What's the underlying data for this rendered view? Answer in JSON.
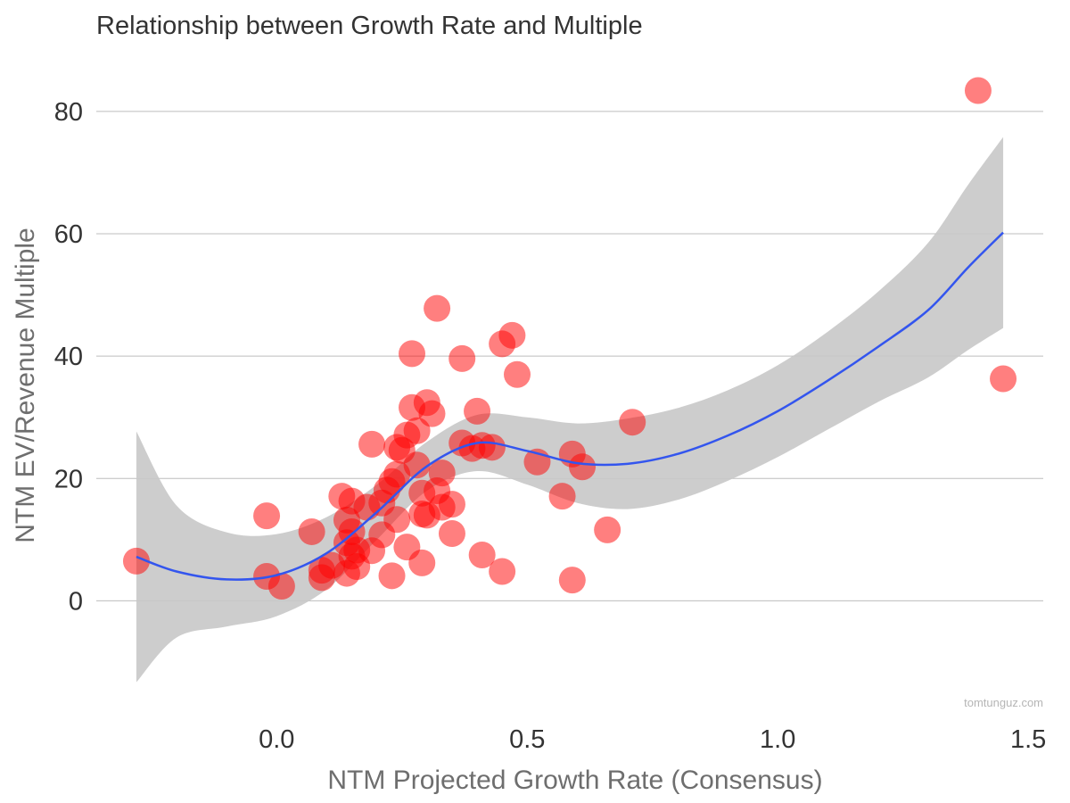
{
  "chart_data": {
    "type": "scatter",
    "title": "Relationship between Growth Rate and Multiple",
    "xlabel": "NTM Projected Growth Rate (Consensus)",
    "ylabel": "NTM EV/Revenue Multiple",
    "watermark": "tomtunguz.com",
    "x_ticks": [
      "0.0",
      "0.5",
      "1.0",
      "1.5"
    ],
    "y_ticks": [
      "0",
      "20",
      "40",
      "60",
      "80"
    ],
    "xlim": [
      -0.36,
      1.53
    ],
    "ylim": [
      -17,
      88
    ],
    "grid": "horizontal",
    "colors": {
      "points": "#ff0000",
      "smooth_line": "#3355ee",
      "confidence_band": "#c8c8c8"
    },
    "points": [
      {
        "x": -0.28,
        "y": 6.5
      },
      {
        "x": -0.02,
        "y": 13.9
      },
      {
        "x": -0.02,
        "y": 4.0
      },
      {
        "x": 0.01,
        "y": 2.4
      },
      {
        "x": 0.07,
        "y": 11.3
      },
      {
        "x": 0.09,
        "y": 3.8
      },
      {
        "x": 0.09,
        "y": 5.0
      },
      {
        "x": 0.11,
        "y": 5.8
      },
      {
        "x": 0.13,
        "y": 17.1
      },
      {
        "x": 0.14,
        "y": 13.2
      },
      {
        "x": 0.14,
        "y": 9.5
      },
      {
        "x": 0.14,
        "y": 4.5
      },
      {
        "x": 0.15,
        "y": 16.3
      },
      {
        "x": 0.15,
        "y": 11.3
      },
      {
        "x": 0.15,
        "y": 7.3
      },
      {
        "x": 0.16,
        "y": 5.6
      },
      {
        "x": 0.16,
        "y": 8.3
      },
      {
        "x": 0.18,
        "y": 15.3
      },
      {
        "x": 0.19,
        "y": 25.6
      },
      {
        "x": 0.19,
        "y": 8.2
      },
      {
        "x": 0.21,
        "y": 10.8
      },
      {
        "x": 0.21,
        "y": 16.0
      },
      {
        "x": 0.22,
        "y": 18.1
      },
      {
        "x": 0.23,
        "y": 19.5
      },
      {
        "x": 0.23,
        "y": 4.1
      },
      {
        "x": 0.24,
        "y": 25.1
      },
      {
        "x": 0.24,
        "y": 20.7
      },
      {
        "x": 0.24,
        "y": 13.3
      },
      {
        "x": 0.25,
        "y": 24.6
      },
      {
        "x": 0.26,
        "y": 27.1
      },
      {
        "x": 0.26,
        "y": 8.8
      },
      {
        "x": 0.27,
        "y": 40.4
      },
      {
        "x": 0.27,
        "y": 31.6
      },
      {
        "x": 0.28,
        "y": 27.8
      },
      {
        "x": 0.28,
        "y": 22.2
      },
      {
        "x": 0.29,
        "y": 17.6
      },
      {
        "x": 0.29,
        "y": 14.2
      },
      {
        "x": 0.29,
        "y": 6.2
      },
      {
        "x": 0.3,
        "y": 32.4
      },
      {
        "x": 0.3,
        "y": 14.0
      },
      {
        "x": 0.31,
        "y": 30.6
      },
      {
        "x": 0.32,
        "y": 47.8
      },
      {
        "x": 0.32,
        "y": 18.0
      },
      {
        "x": 0.33,
        "y": 20.9
      },
      {
        "x": 0.33,
        "y": 15.3
      },
      {
        "x": 0.35,
        "y": 15.8
      },
      {
        "x": 0.35,
        "y": 11.0
      },
      {
        "x": 0.37,
        "y": 39.6
      },
      {
        "x": 0.37,
        "y": 25.8
      },
      {
        "x": 0.39,
        "y": 24.9
      },
      {
        "x": 0.4,
        "y": 31.0
      },
      {
        "x": 0.41,
        "y": 25.4
      },
      {
        "x": 0.41,
        "y": 7.5
      },
      {
        "x": 0.43,
        "y": 25.1
      },
      {
        "x": 0.45,
        "y": 42.0
      },
      {
        "x": 0.45,
        "y": 4.8
      },
      {
        "x": 0.47,
        "y": 43.4
      },
      {
        "x": 0.48,
        "y": 37.0
      },
      {
        "x": 0.52,
        "y": 22.7
      },
      {
        "x": 0.57,
        "y": 17.1
      },
      {
        "x": 0.59,
        "y": 24.0
      },
      {
        "x": 0.59,
        "y": 3.4
      },
      {
        "x": 0.61,
        "y": 21.9
      },
      {
        "x": 0.66,
        "y": 11.6
      },
      {
        "x": 0.71,
        "y": 29.2
      },
      {
        "x": 1.4,
        "y": 83.4
      },
      {
        "x": 1.45,
        "y": 36.3
      }
    ],
    "smooth_fit": [
      {
        "x": -0.28,
        "y": 7.2,
        "lo": -13.3,
        "hi": 27.7
      },
      {
        "x": -0.2,
        "y": 4.8,
        "lo": -6.0,
        "hi": 15.6
      },
      {
        "x": -0.1,
        "y": 3.5,
        "lo": -4.2,
        "hi": 11.2
      },
      {
        "x": 0.0,
        "y": 4.2,
        "lo": -2.5,
        "hi": 10.9
      },
      {
        "x": 0.1,
        "y": 7.8,
        "lo": 1.9,
        "hi": 13.7
      },
      {
        "x": 0.2,
        "y": 14.5,
        "lo": 10.0,
        "hi": 19.0
      },
      {
        "x": 0.3,
        "y": 22.0,
        "lo": 18.0,
        "hi": 26.0
      },
      {
        "x": 0.4,
        "y": 25.8,
        "lo": 21.2,
        "hi": 30.4
      },
      {
        "x": 0.5,
        "y": 24.5,
        "lo": 19.0,
        "hi": 30.0
      },
      {
        "x": 0.6,
        "y": 22.5,
        "lo": 16.0,
        "hi": 29.0
      },
      {
        "x": 0.7,
        "y": 22.4,
        "lo": 15.0,
        "hi": 29.8
      },
      {
        "x": 0.8,
        "y": 24.0,
        "lo": 16.5,
        "hi": 31.5
      },
      {
        "x": 0.9,
        "y": 27.0,
        "lo": 19.6,
        "hi": 34.4
      },
      {
        "x": 1.0,
        "y": 31.0,
        "lo": 23.5,
        "hi": 38.5
      },
      {
        "x": 1.1,
        "y": 36.0,
        "lo": 28.0,
        "hi": 44.0
      },
      {
        "x": 1.2,
        "y": 41.5,
        "lo": 32.5,
        "hi": 50.5
      },
      {
        "x": 1.3,
        "y": 47.5,
        "lo": 36.5,
        "hi": 58.5
      },
      {
        "x": 1.38,
        "y": 54.5,
        "lo": 41.0,
        "hi": 68.0
      },
      {
        "x": 1.45,
        "y": 60.2,
        "lo": 44.6,
        "hi": 75.8
      }
    ]
  }
}
